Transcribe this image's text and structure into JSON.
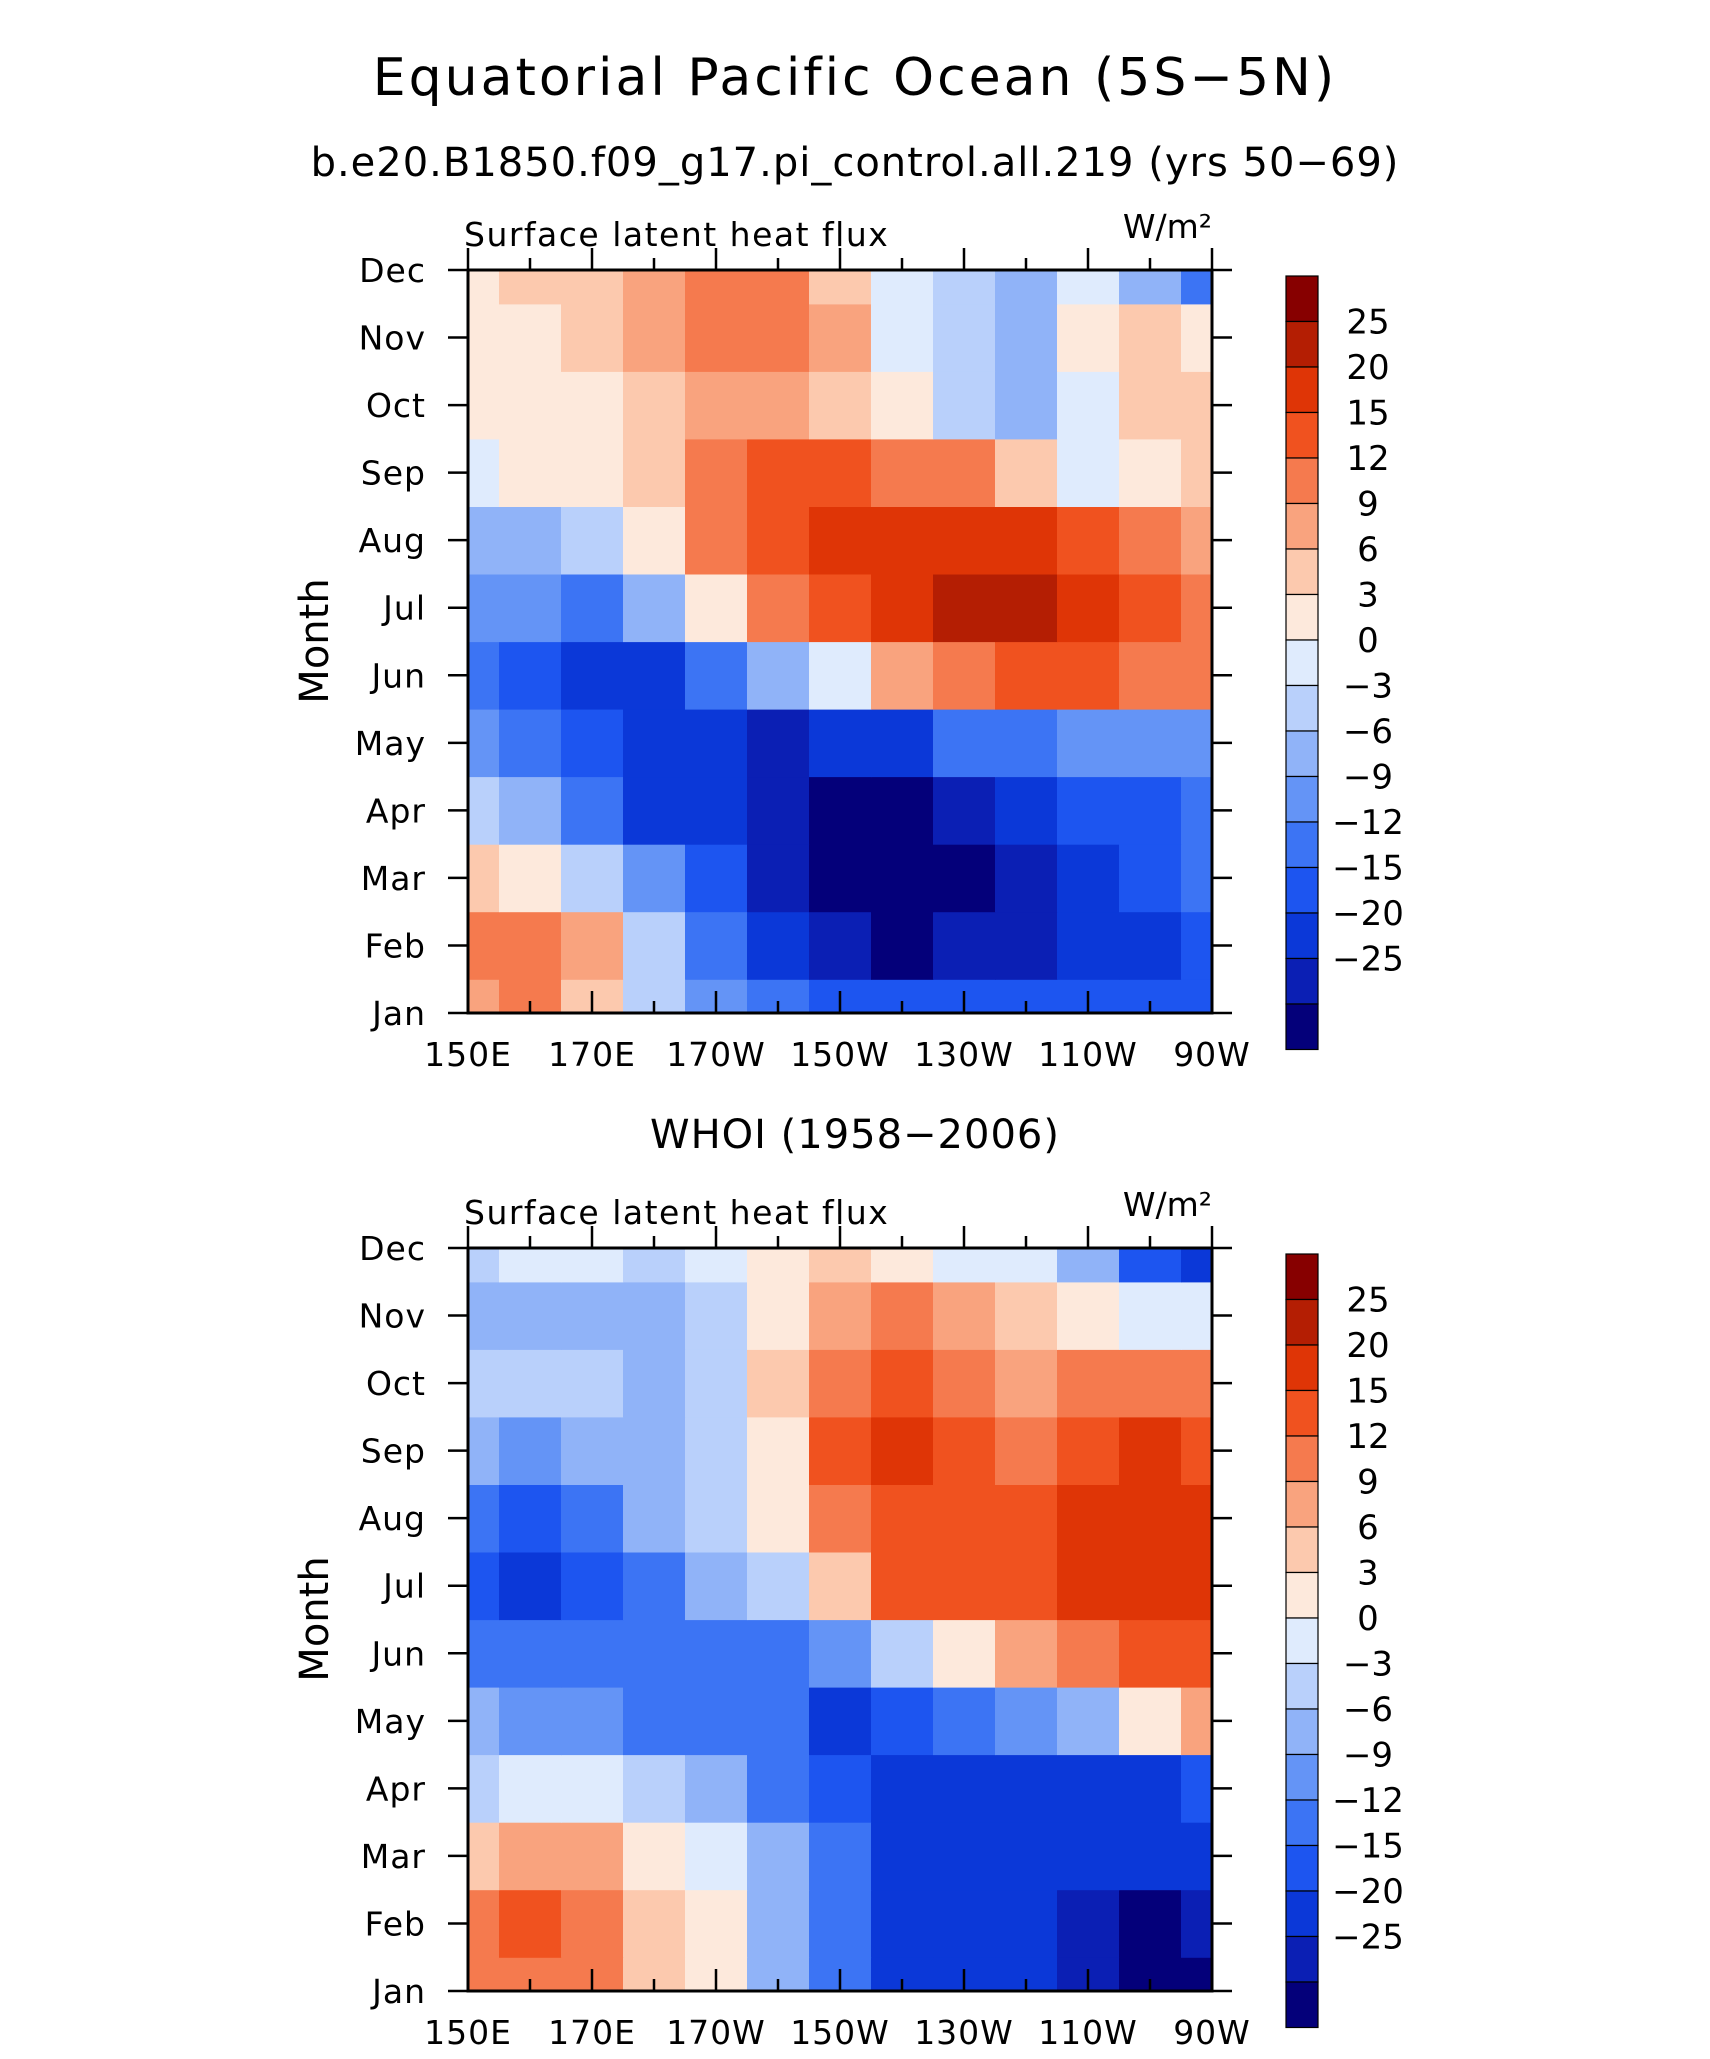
{
  "title": "Equatorial Pacific Ocean (5S−5N)",
  "subtitle_top": "b.e20.B1850.f09_g17.pi_control.all.219 (yrs 50−69)",
  "subtitle_bottom": "WHOI (1958−2006)",
  "colorbar": {
    "labels": [
      "25",
      "20",
      "15",
      "12",
      "9",
      "6",
      "3",
      "0",
      "−3",
      "−6",
      "−9",
      "−12",
      "−15",
      "−20",
      "−25"
    ],
    "levels": [
      -25,
      -20,
      -15,
      -12,
      -9,
      -6,
      -3,
      0,
      3,
      6,
      9,
      12,
      15,
      20,
      25
    ],
    "colors": [
      "#04007a",
      "#0b1fb4",
      "#0b38d8",
      "#1d55f0",
      "#3c74f4",
      "#6494f6",
      "#90b3f8",
      "#b9d0fb",
      "#dfebfd",
      "#fde9dc",
      "#fcc9ae",
      "#f9a37e",
      "#f57a4e",
      "#f0521f",
      "#df3506",
      "#b41e03",
      "#870000"
    ]
  },
  "chart_data": [
    {
      "type": "heatmap",
      "panel": "model",
      "title_left": "Surface latent heat flux",
      "units": "W/m²",
      "ylabel": "Month",
      "x_ticks": [
        "150E",
        "170E",
        "170W",
        "150W",
        "130W",
        "110W",
        "90W"
      ],
      "y_ticks": [
        "Jan",
        "Feb",
        "Mar",
        "Apr",
        "May",
        "Jun",
        "Jul",
        "Aug",
        "Sep",
        "Oct",
        "Nov",
        "Dec"
      ],
      "x": [
        150,
        160,
        170,
        180,
        190,
        200,
        210,
        220,
        230,
        240,
        250,
        260,
        270
      ],
      "y": [
        "Jan",
        "Feb",
        "Mar",
        "Apr",
        "May",
        "Jun",
        "Jul",
        "Aug",
        "Sep",
        "Oct",
        "Nov",
        "Dec"
      ],
      "z": [
        [
          10,
          12,
          8,
          -2,
          -8,
          -12,
          -14,
          -14,
          -15,
          -14,
          -14,
          -13,
          -14
        ],
        [
          14,
          13,
          10,
          -3,
          -10,
          -16,
          -22,
          -26,
          -25,
          -24,
          -18,
          -16,
          -14
        ],
        [
          6,
          5,
          -2,
          -8,
          -14,
          -22,
          -28,
          -30,
          -27,
          -22,
          -16,
          -15,
          -12
        ],
        [
          -2,
          -5,
          -10,
          -16,
          -18,
          -24,
          -26,
          -26,
          -22,
          -18,
          -14,
          -13,
          -12
        ],
        [
          -9,
          -10,
          -14,
          -18,
          -20,
          -22,
          -20,
          -16,
          -12,
          -10,
          -8,
          -8,
          -8
        ],
        [
          -10,
          -13,
          -16,
          -16,
          -12,
          -6,
          2,
          10,
          14,
          18,
          16,
          14,
          12
        ],
        [
          -7,
          -9,
          -10,
          -6,
          4,
          14,
          18,
          24,
          28,
          26,
          20,
          16,
          14
        ],
        [
          -4,
          -4,
          -2,
          3,
          12,
          18,
          20,
          22,
          22,
          20,
          16,
          12,
          10
        ],
        [
          2,
          3,
          5,
          8,
          14,
          16,
          15,
          14,
          12,
          6,
          2,
          4,
          6
        ],
        [
          3,
          4,
          5,
          8,
          11,
          10,
          8,
          4,
          -2,
          -6,
          2,
          6,
          8
        ],
        [
          4,
          5,
          7,
          10,
          12,
          12,
          9,
          2,
          -3,
          -5,
          4,
          6,
          5
        ],
        [
          5,
          6,
          8,
          10,
          13,
          12,
          8,
          2,
          -2,
          -4,
          0,
          -6,
          -10
        ]
      ]
    },
    {
      "type": "heatmap",
      "panel": "observations",
      "title_left": "Surface latent heat flux",
      "units": "W/m²",
      "ylabel": "Month",
      "x_ticks": [
        "150E",
        "170E",
        "170W",
        "150W",
        "130W",
        "110W",
        "90W"
      ],
      "y_ticks": [
        "Jan",
        "Feb",
        "Mar",
        "Apr",
        "May",
        "Jun",
        "Jul",
        "Aug",
        "Sep",
        "Oct",
        "Nov",
        "Dec"
      ],
      "x": [
        150,
        160,
        170,
        180,
        190,
        200,
        210,
        220,
        230,
        240,
        250,
        260,
        270
      ],
      "y": [
        "Jan",
        "Feb",
        "Mar",
        "Apr",
        "May",
        "Jun",
        "Jul",
        "Aug",
        "Sep",
        "Oct",
        "Nov",
        "Dec"
      ],
      "z": [
        [
          12,
          14,
          14,
          8,
          4,
          -4,
          -10,
          -16,
          -18,
          -20,
          -22,
          -26,
          -28
        ],
        [
          14,
          16,
          14,
          8,
          4,
          -6,
          -12,
          -16,
          -18,
          -20,
          -24,
          -26,
          -24
        ],
        [
          8,
          10,
          10,
          4,
          2,
          -6,
          -12,
          -16,
          -16,
          -18,
          -18,
          -20,
          -18
        ],
        [
          -2,
          0,
          2,
          -3,
          -4,
          -10,
          -14,
          -16,
          -16,
          -18,
          -18,
          -16,
          -14
        ],
        [
          -6,
          -8,
          -8,
          -10,
          -10,
          -12,
          -16,
          -14,
          -12,
          -8,
          -4,
          4,
          10
        ],
        [
          -12,
          -10,
          -10,
          -12,
          -10,
          -12,
          -8,
          -2,
          4,
          10,
          14,
          16,
          18
        ],
        [
          -14,
          -16,
          -14,
          -10,
          -6,
          -2,
          8,
          16,
          18,
          16,
          20,
          22,
          20
        ],
        [
          -10,
          -14,
          -10,
          -6,
          -2,
          4,
          14,
          18,
          18,
          16,
          20,
          20,
          20
        ],
        [
          -6,
          -8,
          -6,
          -4,
          -2,
          4,
          16,
          20,
          18,
          14,
          18,
          24,
          18
        ],
        [
          -2,
          -3,
          -3,
          -6,
          -3,
          6,
          14,
          16,
          14,
          10,
          12,
          14,
          14
        ],
        [
          -6,
          -6,
          -6,
          -4,
          -2,
          4,
          10,
          12,
          10,
          6,
          4,
          2,
          0
        ],
        [
          -2,
          0,
          2,
          -2,
          2,
          4,
          6,
          4,
          2,
          0,
          -6,
          -14,
          -18
        ]
      ]
    }
  ]
}
